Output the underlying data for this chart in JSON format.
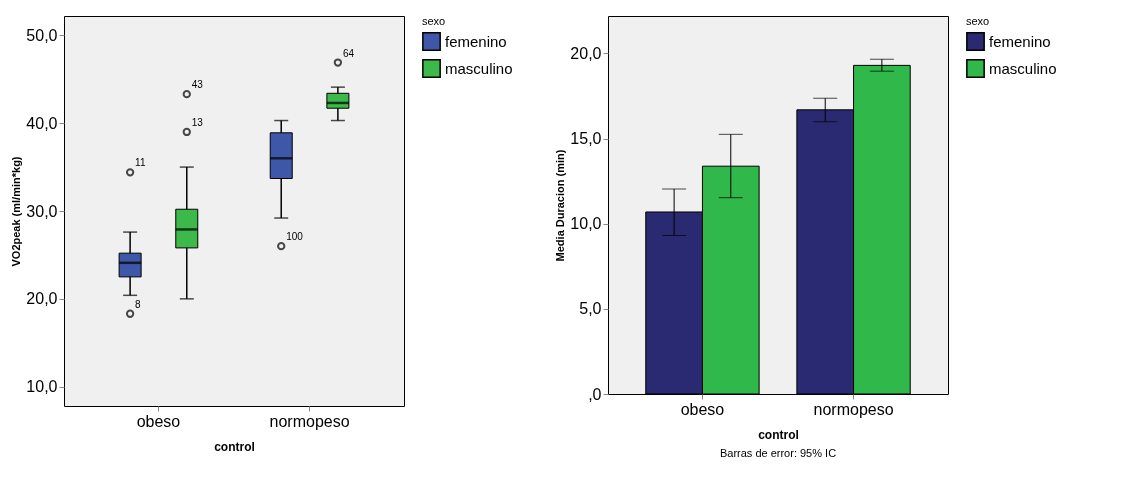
{
  "chart_data": [
    {
      "type": "box",
      "xlabel": "control",
      "ylabel": "VO2peak (ml/min*kg)",
      "legend_title": "sexo",
      "legend": "top right",
      "grid": false,
      "categories": [
        "obeso",
        "normopeso"
      ],
      "ylim": [
        7.8,
        52.2
      ],
      "yticks": [
        {
          "value": 10,
          "label": "10,0"
        },
        {
          "value": 20,
          "label": "20,0"
        },
        {
          "value": 30,
          "label": "30,0"
        },
        {
          "value": 40,
          "label": "40,0"
        },
        {
          "value": 50,
          "label": "50,0"
        }
      ],
      "series": [
        {
          "name": "femenino",
          "color": "#3f57a8",
          "boxes": [
            {
              "low": 20.4,
              "q1": 22.5,
              "median": 24.1,
              "q3": 25.2,
              "high": 27.6,
              "outliers": [
                18.3,
                34.4
              ]
            },
            {
              "low": 29.2,
              "q1": 33.7,
              "median": 36.0,
              "q3": 38.9,
              "high": 40.3,
              "outliers": [
                26.0
              ]
            }
          ]
        },
        {
          "name": "masculino",
          "color": "#3cb94a",
          "boxes": [
            {
              "low": 20.0,
              "q1": 25.8,
              "median": 27.9,
              "q3": 30.2,
              "high": 35.0,
              "outliers": [
                39.0,
                43.3
              ]
            },
            {
              "low": 40.3,
              "q1": 41.7,
              "median": 42.3,
              "q3": 43.4,
              "high": 44.1,
              "outliers": [
                46.9
              ]
            }
          ]
        }
      ],
      "annotations": [
        "8",
        "11",
        "100",
        "13",
        "43",
        "64"
      ]
    },
    {
      "type": "bar",
      "xlabel": "control",
      "ylabel": "Media Duracion (min)",
      "legend_title": "sexo",
      "legend": "top right",
      "grid": false,
      "categories": [
        "obeso",
        "normopeso"
      ],
      "ylim": [
        0,
        22.2
      ],
      "yticks": [
        {
          "value": 0,
          "label": ",0"
        },
        {
          "value": 5,
          "label": "5,0"
        },
        {
          "value": 10,
          "label": "10,0"
        },
        {
          "value": 15,
          "label": "15,0"
        },
        {
          "value": 20,
          "label": "20,0"
        }
      ],
      "series": [
        {
          "name": "femenino",
          "color": "#2a2a72",
          "values": [
            10.69,
            16.69
          ],
          "errors": [
            [
              9.31,
              12.04
            ],
            [
              15.99,
              17.37
            ]
          ]
        },
        {
          "name": "masculino",
          "color": "#30b84a",
          "values": [
            13.38,
            19.3
          ],
          "errors": [
            [
              11.53,
              15.25
            ],
            [
              18.96,
              19.66
            ]
          ]
        }
      ],
      "annotations": [
        "Barras de error: 95% IC"
      ]
    }
  ]
}
